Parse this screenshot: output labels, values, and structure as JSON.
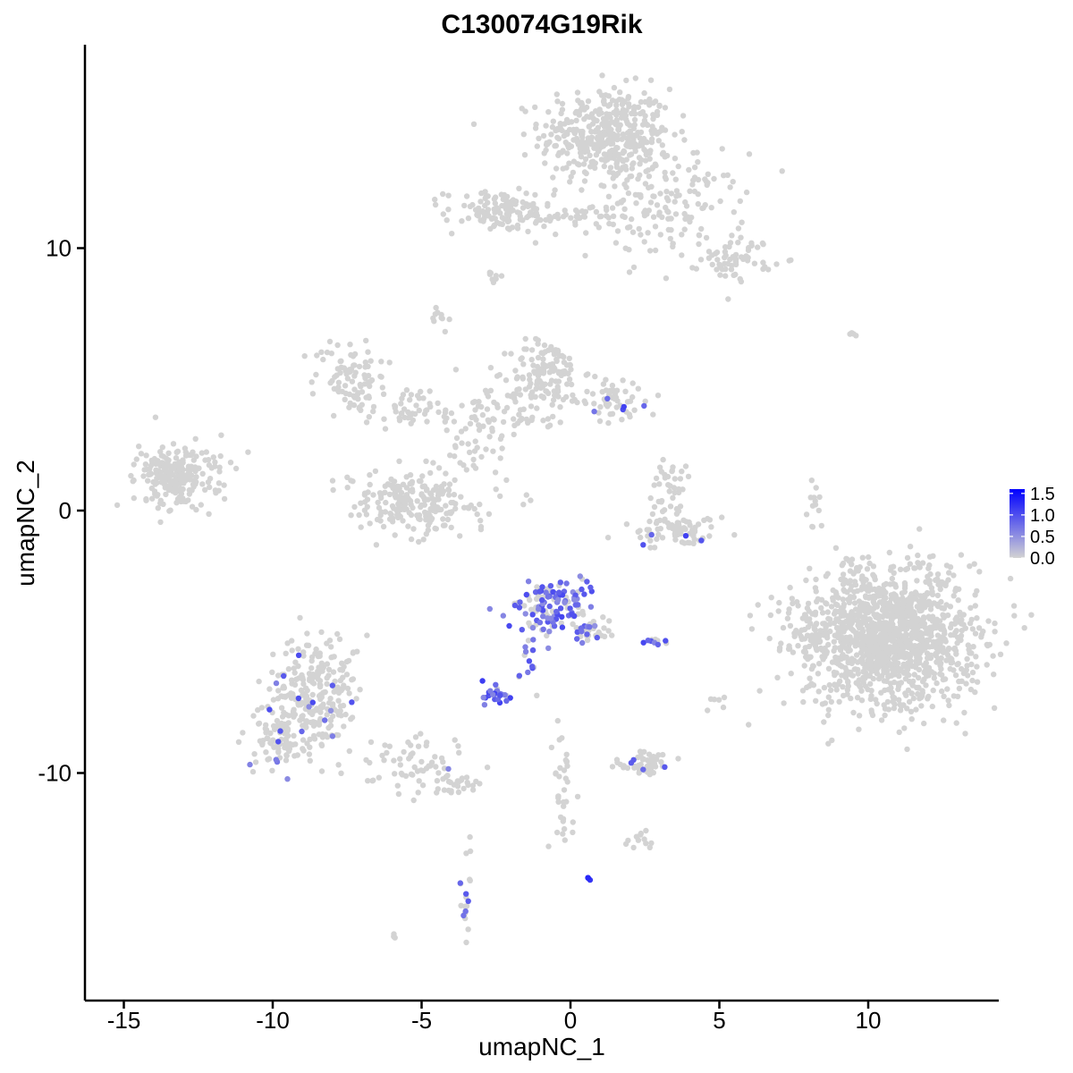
{
  "chart_data": {
    "type": "scatter",
    "title": "C130074G19Rik",
    "xlabel": "umapNC_1",
    "ylabel": "umapNC_2",
    "xlim": [
      -16.5,
      14.5
    ],
    "ylim": [
      -18.4,
      17.8
    ],
    "x_ticks": [
      -15,
      -10,
      -5,
      0,
      5,
      10
    ],
    "y_ticks": [
      -10,
      0,
      10
    ],
    "x_tick_labels": [
      "-15",
      "-10",
      "-5",
      "0",
      "5",
      "10"
    ],
    "y_tick_labels": [
      "-10",
      "0",
      "10"
    ],
    "grid": false,
    "legend": {
      "placement": "right",
      "low_color": "#d3d3d3",
      "high_color": "#0000ff",
      "min": 0.0,
      "max": 1.6,
      "ticks": [
        1.5,
        1.0,
        0.5,
        0.0
      ],
      "tick_labels": [
        "1.5",
        "1.0",
        "0.5",
        "0.0"
      ]
    },
    "clusters": [
      {
        "cx": 1.2,
        "cy": 14.3,
        "sx": 1.1,
        "sy": 0.9,
        "n": 420,
        "expr": 0,
        "expr_frac": 0
      },
      {
        "cx": 3.2,
        "cy": 11.6,
        "sx": 1.3,
        "sy": 1.0,
        "n": 160,
        "expr": 0,
        "expr_frac": 0
      },
      {
        "cx": 5.6,
        "cy": 9.6,
        "sx": 0.6,
        "sy": 0.4,
        "n": 60,
        "expr": 0,
        "expr_frac": 0
      },
      {
        "cx": -2.4,
        "cy": 11.4,
        "sx": 0.9,
        "sy": 0.4,
        "n": 110,
        "expr": 0,
        "expr_frac": 0
      },
      {
        "cx": -0.2,
        "cy": 11.2,
        "sx": 1.0,
        "sy": 0.15,
        "n": 40,
        "expr": 0,
        "expr_frac": 0
      },
      {
        "cx": -2.7,
        "cy": 8.8,
        "sx": 0.2,
        "sy": 0.2,
        "n": 8,
        "expr": 0,
        "expr_frac": 0
      },
      {
        "cx": -4.4,
        "cy": 7.3,
        "sx": 0.15,
        "sy": 0.3,
        "n": 10,
        "expr": 0,
        "expr_frac": 0
      },
      {
        "cx": -7.4,
        "cy": 5.2,
        "sx": 0.6,
        "sy": 0.7,
        "n": 80,
        "expr": 0,
        "expr_frac": 0
      },
      {
        "cx": -5.5,
        "cy": 4.0,
        "sx": 1.0,
        "sy": 0.4,
        "n": 60,
        "expr": 0,
        "expr_frac": 0
      },
      {
        "cx": -0.8,
        "cy": 5.3,
        "sx": 0.6,
        "sy": 0.6,
        "n": 120,
        "expr": 0,
        "expr_frac": 0
      },
      {
        "cx": -1.8,
        "cy": 3.8,
        "sx": 0.9,
        "sy": 0.5,
        "n": 70,
        "expr": 0,
        "expr_frac": 0
      },
      {
        "cx": 1.5,
        "cy": 4.2,
        "sx": 0.6,
        "sy": 0.4,
        "n": 60,
        "expr": 1.0,
        "expr_frac": 0.05
      },
      {
        "cx": -3.2,
        "cy": 2.2,
        "sx": 0.8,
        "sy": 0.8,
        "n": 40,
        "expr": 0,
        "expr_frac": 0
      },
      {
        "cx": -5.4,
        "cy": 0.3,
        "sx": 1.0,
        "sy": 0.6,
        "n": 220,
        "expr": 0,
        "expr_frac": 0
      },
      {
        "cx": -13.4,
        "cy": 1.3,
        "sx": 0.6,
        "sy": 0.6,
        "n": 200,
        "expr": 0,
        "expr_frac": 0
      },
      {
        "cx": -12.2,
        "cy": 1.6,
        "sx": 0.5,
        "sy": 0.6,
        "n": 30,
        "expr": 0,
        "expr_frac": 0
      },
      {
        "cx": 3.3,
        "cy": 0.8,
        "sx": 0.3,
        "sy": 0.6,
        "n": 40,
        "expr": 0,
        "expr_frac": 0
      },
      {
        "cx": 3.5,
        "cy": -0.8,
        "sx": 0.8,
        "sy": 0.3,
        "n": 80,
        "expr": 1.0,
        "expr_frac": 0.02
      },
      {
        "cx": 8.2,
        "cy": -0.2,
        "sx": 0.15,
        "sy": 0.8,
        "n": 12,
        "expr": 0,
        "expr_frac": 0
      },
      {
        "cx": 10.6,
        "cy": -4.8,
        "sx": 1.5,
        "sy": 1.3,
        "n": 1400,
        "expr": 0,
        "expr_frac": 0
      },
      {
        "cx": -0.6,
        "cy": -3.6,
        "sx": 0.6,
        "sy": 0.5,
        "n": 140,
        "expr": 0.95,
        "expr_frac": 0.65
      },
      {
        "cx": 0.7,
        "cy": -4.6,
        "sx": 0.35,
        "sy": 0.4,
        "n": 30,
        "expr": 0.9,
        "expr_frac": 0.45
      },
      {
        "cx": -1.3,
        "cy": -5.8,
        "sx": 0.2,
        "sy": 0.6,
        "n": 15,
        "expr": 0.9,
        "expr_frac": 0.7
      },
      {
        "cx": -2.5,
        "cy": -7.0,
        "sx": 0.3,
        "sy": 0.15,
        "n": 28,
        "expr": 1.0,
        "expr_frac": 0.85
      },
      {
        "cx": 2.8,
        "cy": -5.0,
        "sx": 0.2,
        "sy": 0.06,
        "n": 10,
        "expr": 1.0,
        "expr_frac": 0.7
      },
      {
        "cx": -8.6,
        "cy": -7.0,
        "sx": 0.7,
        "sy": 1.0,
        "n": 260,
        "expr": 0.9,
        "expr_frac": 0.05
      },
      {
        "cx": -9.8,
        "cy": -8.8,
        "sx": 0.5,
        "sy": 0.5,
        "n": 80,
        "expr": 0.9,
        "expr_frac": 0.06
      },
      {
        "cx": -5.5,
        "cy": -9.5,
        "sx": 1.0,
        "sy": 0.5,
        "n": 60,
        "expr": 0.8,
        "expr_frac": 0.05
      },
      {
        "cx": -4.0,
        "cy": -10.4,
        "sx": 0.5,
        "sy": 0.2,
        "n": 30,
        "expr": 0,
        "expr_frac": 0
      },
      {
        "cx": -3.5,
        "cy": -14.4,
        "sx": 0.15,
        "sy": 1.0,
        "n": 20,
        "expr": 1.0,
        "expr_frac": 0.25
      },
      {
        "cx": 2.4,
        "cy": -9.6,
        "sx": 0.5,
        "sy": 0.2,
        "n": 50,
        "expr": 0.9,
        "expr_frac": 0.15
      },
      {
        "cx": -0.3,
        "cy": -10.6,
        "sx": 0.2,
        "sy": 1.3,
        "n": 35,
        "expr": 0,
        "expr_frac": 0
      },
      {
        "cx": 2.4,
        "cy": -12.6,
        "sx": 0.3,
        "sy": 0.2,
        "n": 12,
        "expr": 0,
        "expr_frac": 0
      },
      {
        "cx": 4.9,
        "cy": -7.4,
        "sx": 0.15,
        "sy": 0.3,
        "n": 6,
        "expr": 0,
        "expr_frac": 0
      },
      {
        "cx": 0.6,
        "cy": -14.0,
        "sx": 0.04,
        "sy": 0.04,
        "n": 3,
        "expr": 1.6,
        "expr_frac": 0.6
      },
      {
        "cx": -6.0,
        "cy": -16.2,
        "sx": 0.1,
        "sy": 0.08,
        "n": 3,
        "expr": 0,
        "expr_frac": 0
      },
      {
        "cx": 9.5,
        "cy": 6.7,
        "sx": 0.2,
        "sy": 0.05,
        "n": 4,
        "expr": 0,
        "expr_frac": 0
      }
    ]
  }
}
